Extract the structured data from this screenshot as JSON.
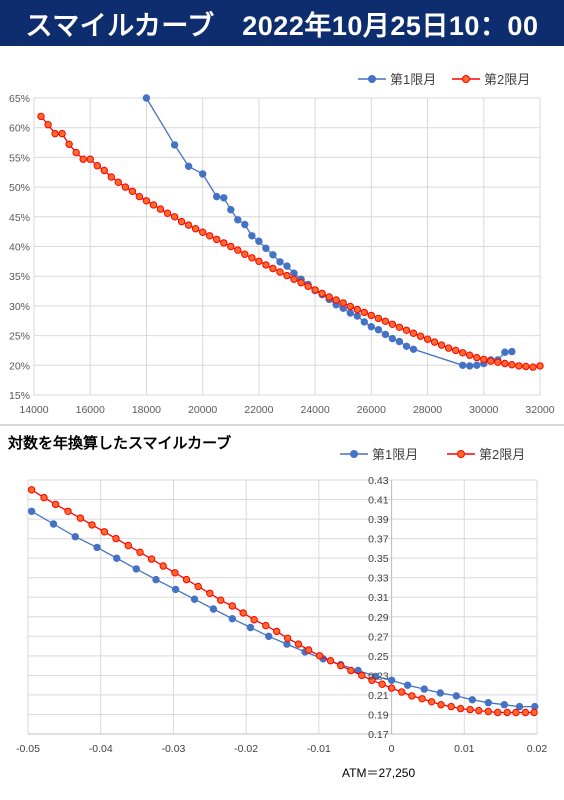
{
  "header": {
    "title": "スマイルカーブ　2022年10月25日10：00"
  },
  "colors": {
    "header_bg": "#0e2d6e",
    "series1": "#4472c4",
    "series2": "#ff0000",
    "series2_fill": "#ff6b2b",
    "grid": "#d9d9d9"
  },
  "chart_data": [
    {
      "type": "line",
      "title": "",
      "xlabel": "",
      "ylabel": "",
      "xlim": [
        14000,
        32000
      ],
      "ylim": [
        0.15,
        0.65
      ],
      "xticks": [
        "14000",
        "16000",
        "18000",
        "20000",
        "22000",
        "24000",
        "26000",
        "28000",
        "30000",
        "32000"
      ],
      "yticks": [
        "15%",
        "20%",
        "25%",
        "30%",
        "35%",
        "40%",
        "45%",
        "50%",
        "55%",
        "60%",
        "65%"
      ],
      "legend_position": "top-right",
      "grid": true,
      "series": [
        {
          "name": "第1限月",
          "x": [
            18000,
            19000,
            19500,
            20000,
            20500,
            20750,
            21000,
            21250,
            21500,
            21750,
            22000,
            22250,
            22500,
            22750,
            23000,
            23250,
            23500,
            23750,
            24000,
            24250,
            24500,
            24750,
            25000,
            25250,
            25500,
            25750,
            26000,
            26250,
            26500,
            26750,
            27000,
            27250,
            27500,
            29250,
            29500,
            29750,
            30000,
            30250,
            30500,
            30750,
            31000
          ],
          "y": [
            0.65,
            0.571,
            0.535,
            0.522,
            0.484,
            0.482,
            0.462,
            0.445,
            0.437,
            0.418,
            0.409,
            0.397,
            0.386,
            0.374,
            0.367,
            0.355,
            0.345,
            0.336,
            0.326,
            0.319,
            0.311,
            0.302,
            0.296,
            0.288,
            0.283,
            0.273,
            0.265,
            0.26,
            0.252,
            0.245,
            0.24,
            0.232,
            0.227,
            0.2,
            0.199,
            0.2,
            0.203,
            0.209,
            0.209,
            0.222,
            0.223
          ]
        },
        {
          "name": "第2限月",
          "x": [
            14250,
            14500,
            14750,
            15000,
            15250,
            15500,
            15750,
            16000,
            16250,
            16500,
            16750,
            17000,
            17250,
            17500,
            17750,
            18000,
            18250,
            18500,
            18750,
            19000,
            19250,
            19500,
            19750,
            20000,
            20250,
            20500,
            20750,
            21000,
            21250,
            21500,
            21750,
            22000,
            22250,
            22500,
            22750,
            23000,
            23250,
            23500,
            23750,
            24000,
            24250,
            24500,
            24750,
            25000,
            25250,
            25500,
            25750,
            26000,
            26250,
            26500,
            26750,
            27000,
            27250,
            27500,
            27750,
            28000,
            28250,
            28500,
            28750,
            29000,
            29250,
            29500,
            29750,
            30000,
            30250,
            30500,
            30750,
            31000,
            31250,
            31500,
            31750,
            32000
          ],
          "y": [
            0.619,
            0.605,
            0.59,
            0.59,
            0.572,
            0.558,
            0.547,
            0.547,
            0.536,
            0.528,
            0.517,
            0.508,
            0.5,
            0.493,
            0.484,
            0.477,
            0.47,
            0.463,
            0.456,
            0.45,
            0.442,
            0.436,
            0.43,
            0.424,
            0.418,
            0.412,
            0.406,
            0.4,
            0.394,
            0.387,
            0.381,
            0.375,
            0.369,
            0.363,
            0.357,
            0.351,
            0.345,
            0.339,
            0.333,
            0.327,
            0.321,
            0.315,
            0.31,
            0.305,
            0.299,
            0.294,
            0.289,
            0.284,
            0.279,
            0.274,
            0.269,
            0.264,
            0.259,
            0.254,
            0.249,
            0.244,
            0.239,
            0.234,
            0.229,
            0.225,
            0.221,
            0.217,
            0.213,
            0.21,
            0.207,
            0.205,
            0.203,
            0.201,
            0.199,
            0.198,
            0.197,
            0.199
          ]
        }
      ]
    },
    {
      "type": "line",
      "title": "対数を年換算したスマイルカーブ",
      "xlabel": "",
      "ylabel": "",
      "xlim": [
        -0.05,
        0.02
      ],
      "ylim": [
        0.17,
        0.43
      ],
      "xticks": [
        "-0.05",
        "-0.04",
        "-0.03",
        "-0.02",
        "-0.01",
        "0",
        "0.01",
        "0.02"
      ],
      "yticks": [
        "0.17",
        "0.19",
        "0.21",
        "0.23",
        "0.25",
        "0.27",
        "0.29",
        "0.31",
        "0.33",
        "0.35",
        "0.37",
        "0.39",
        "0.41",
        "0.43"
      ],
      "annotation": "ATM＝27,250",
      "legend_position": "top-right",
      "grid": true,
      "series": [
        {
          "name": "第1限月",
          "x": [
            -0.0495,
            -0.0465,
            -0.0435,
            -0.0405,
            -0.0378,
            -0.0351,
            -0.0324,
            -0.0297,
            -0.0271,
            -0.0245,
            -0.0219,
            -0.0194,
            -0.0169,
            -0.0144,
            -0.0119,
            -0.0094,
            -0.007,
            -0.0046,
            -0.0022,
            0.0,
            0.0022,
            0.0045,
            0.0067,
            0.0089,
            0.0111,
            0.0133,
            0.0155,
            0.0176,
            0.0197
          ],
          "y": [
            0.398,
            0.385,
            0.372,
            0.361,
            0.35,
            0.339,
            0.328,
            0.318,
            0.308,
            0.298,
            0.288,
            0.279,
            0.27,
            0.262,
            0.254,
            0.247,
            0.241,
            0.235,
            0.229,
            0.225,
            0.22,
            0.216,
            0.212,
            0.209,
            0.205,
            0.202,
            0.2,
            0.198,
            0.198
          ]
        },
        {
          "name": "第2限月",
          "x": [
            -0.0495,
            -0.0478,
            -0.0462,
            -0.0445,
            -0.0428,
            -0.0412,
            -0.0395,
            -0.0379,
            -0.0362,
            -0.0346,
            -0.033,
            -0.0314,
            -0.0298,
            -0.0282,
            -0.0266,
            -0.025,
            -0.0235,
            -0.0219,
            -0.0204,
            -0.0189,
            -0.0173,
            -0.0158,
            -0.0143,
            -0.0128,
            -0.0114,
            -0.0099,
            -0.0084,
            -0.007,
            -0.0056,
            -0.0041,
            -0.0027,
            -0.0013,
            0.0,
            0.0014,
            0.0028,
            0.0042,
            0.0055,
            0.0068,
            0.0082,
            0.0095,
            0.0108,
            0.012,
            0.0133,
            0.0146,
            0.0159,
            0.0171,
            0.0184,
            0.0196
          ],
          "y": [
            0.42,
            0.412,
            0.405,
            0.398,
            0.391,
            0.384,
            0.377,
            0.37,
            0.363,
            0.356,
            0.349,
            0.342,
            0.335,
            0.328,
            0.321,
            0.314,
            0.307,
            0.301,
            0.294,
            0.287,
            0.281,
            0.275,
            0.268,
            0.262,
            0.256,
            0.25,
            0.245,
            0.24,
            0.235,
            0.23,
            0.225,
            0.221,
            0.217,
            0.213,
            0.209,
            0.206,
            0.203,
            0.2,
            0.198,
            0.196,
            0.195,
            0.194,
            0.193,
            0.192,
            0.192,
            0.192,
            0.192,
            0.192
          ]
        }
      ]
    }
  ]
}
